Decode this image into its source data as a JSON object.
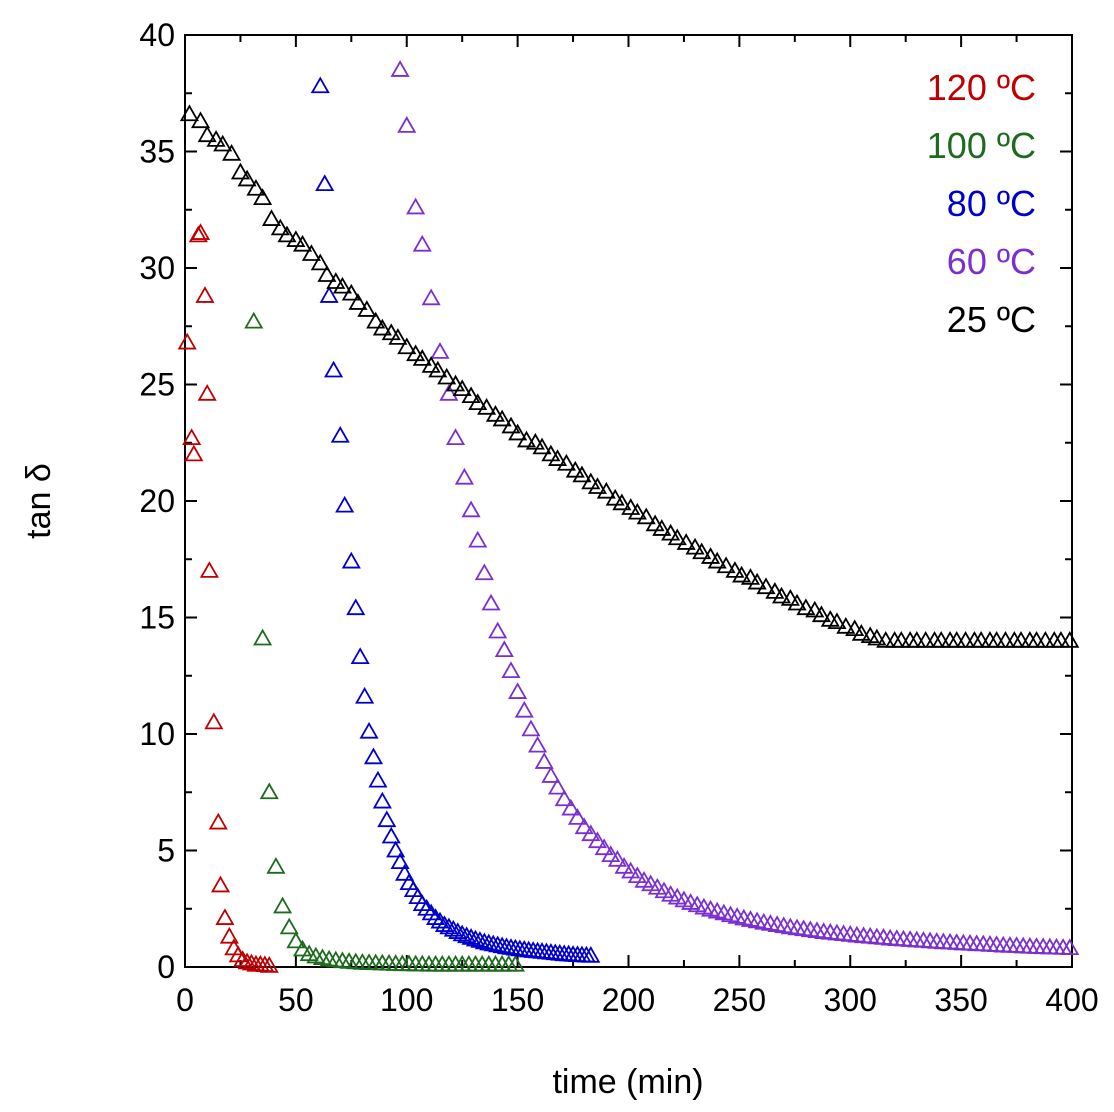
{
  "chart_data": {
    "type": "scatter",
    "xlabel": "time (min)",
    "ylabel": "tan δ",
    "xlim": [
      0,
      400
    ],
    "ylim": [
      0,
      40
    ],
    "xticks": [
      0,
      50,
      100,
      150,
      200,
      250,
      300,
      350,
      400
    ],
    "yticks": [
      0,
      5,
      10,
      15,
      20,
      25,
      30,
      35,
      40
    ],
    "marker": "open-triangle",
    "grid": false,
    "legend_position": "top-right",
    "series": [
      {
        "name": "120 ºC",
        "color": "#c00000",
        "x": [
          1,
          3,
          4,
          6,
          7,
          9,
          10,
          11,
          13,
          15,
          16,
          18,
          20,
          22,
          24,
          26,
          28,
          30,
          32,
          34,
          36,
          38
        ],
        "y": [
          26.8,
          22.7,
          22.0,
          31.4,
          31.5,
          28.8,
          24.6,
          17.0,
          10.5,
          6.2,
          3.5,
          2.1,
          1.3,
          0.8,
          0.5,
          0.3,
          0.2,
          0.15,
          0.1,
          0.1,
          0.08,
          0.05
        ]
      },
      {
        "name": "100 ºC",
        "color": "#1e6b1e",
        "x": [
          31,
          35,
          38,
          41,
          44,
          47,
          50,
          53,
          56,
          59,
          62,
          65,
          68,
          71,
          74,
          77,
          80,
          83,
          86,
          89,
          92,
          95,
          98,
          101,
          104,
          107,
          110,
          113,
          116,
          119,
          122,
          125,
          128,
          131,
          134,
          137,
          140,
          143,
          146,
          149
        ],
        "y": [
          27.7,
          14.1,
          7.5,
          4.3,
          2.6,
          1.7,
          1.1,
          0.75,
          0.55,
          0.45,
          0.38,
          0.32,
          0.28,
          0.25,
          0.22,
          0.2,
          0.18,
          0.17,
          0.16,
          0.15,
          0.14,
          0.13,
          0.12,
          0.12,
          0.11,
          0.11,
          0.1,
          0.1,
          0.1,
          0.1,
          0.1,
          0.1,
          0.1,
          0.1,
          0.1,
          0.1,
          0.1,
          0.1,
          0.1,
          0.1
        ]
      },
      {
        "name": "80 ºC",
        "color": "#0000cc",
        "x": [
          61,
          63,
          65,
          67,
          70,
          72,
          75,
          77,
          79,
          81,
          83,
          85,
          87,
          89,
          91,
          93,
          95,
          97,
          99,
          101,
          103,
          105,
          107,
          109,
          111,
          113,
          115,
          117,
          119,
          121,
          123,
          125,
          127,
          129,
          131,
          133,
          135,
          137,
          139,
          141,
          143,
          145,
          147,
          149,
          151,
          153,
          155,
          157,
          159,
          161,
          163,
          165,
          167,
          169,
          171,
          173,
          175,
          177,
          179,
          181,
          183
        ],
        "y": [
          37.8,
          33.6,
          28.8,
          25.6,
          22.8,
          19.8,
          17.4,
          15.4,
          13.3,
          11.6,
          10.1,
          9.0,
          8.0,
          7.1,
          6.3,
          5.6,
          5.0,
          4.5,
          4.0,
          3.6,
          3.3,
          3.0,
          2.7,
          2.5,
          2.3,
          2.1,
          1.95,
          1.8,
          1.7,
          1.6,
          1.5,
          1.4,
          1.32,
          1.25,
          1.18,
          1.12,
          1.06,
          1.01,
          0.97,
          0.93,
          0.89,
          0.85,
          0.82,
          0.79,
          0.76,
          0.74,
          0.71,
          0.69,
          0.67,
          0.65,
          0.63,
          0.61,
          0.59,
          0.57,
          0.55,
          0.54,
          0.52,
          0.51,
          0.5,
          0.49,
          0.48
        ]
      },
      {
        "name": "60 ºC",
        "color": "#7b2fd0",
        "x": [
          97,
          100,
          104,
          107,
          111,
          115,
          119,
          122,
          126,
          129,
          132,
          135,
          138,
          141,
          144,
          147,
          150,
          153,
          156,
          159,
          162,
          165,
          168,
          171,
          174,
          177,
          180,
          183,
          186,
          189,
          192,
          195,
          198,
          201,
          204,
          207,
          210,
          213,
          216,
          219,
          222,
          225,
          228,
          231,
          234,
          237,
          240,
          243,
          246,
          249,
          252,
          255,
          258,
          261,
          264,
          267,
          270,
          273,
          276,
          279,
          282,
          285,
          288,
          291,
          294,
          297,
          300,
          303,
          306,
          309,
          312,
          315,
          318,
          321,
          324,
          327,
          330,
          333,
          336,
          339,
          342,
          345,
          348,
          351,
          354,
          357,
          360,
          363,
          366,
          369,
          372,
          375,
          378,
          381,
          384,
          387,
          390,
          393,
          396,
          399
        ],
        "y": [
          38.5,
          36.1,
          32.6,
          31.0,
          28.7,
          26.4,
          24.6,
          22.7,
          21.0,
          19.6,
          18.3,
          16.9,
          15.6,
          14.4,
          13.6,
          12.7,
          11.8,
          11.0,
          10.2,
          9.5,
          8.8,
          8.2,
          7.7,
          7.2,
          6.8,
          6.4,
          6.0,
          5.7,
          5.4,
          5.1,
          4.8,
          4.6,
          4.3,
          4.1,
          3.9,
          3.7,
          3.55,
          3.4,
          3.25,
          3.1,
          2.98,
          2.86,
          2.75,
          2.65,
          2.55,
          2.46,
          2.38,
          2.3,
          2.22,
          2.15,
          2.08,
          2.02,
          1.96,
          1.9,
          1.85,
          1.8,
          1.75,
          1.7,
          1.66,
          1.62,
          1.58,
          1.54,
          1.5,
          1.47,
          1.44,
          1.41,
          1.38,
          1.35,
          1.32,
          1.3,
          1.27,
          1.25,
          1.22,
          1.2,
          1.18,
          1.16,
          1.14,
          1.12,
          1.1,
          1.08,
          1.06,
          1.05,
          1.03,
          1.01,
          1.0,
          0.98,
          0.97,
          0.95,
          0.94,
          0.92,
          0.91,
          0.9,
          0.88,
          0.87,
          0.86,
          0.85,
          0.84,
          0.83,
          0.82,
          0.81
        ]
      },
      {
        "name": "25 ºC",
        "color": "#000000",
        "x": [
          2,
          7,
          10,
          14,
          17,
          21,
          25,
          28,
          32,
          35,
          39,
          43,
          46,
          50,
          53,
          57,
          61,
          64,
          68,
          71,
          75,
          78,
          82,
          86,
          89,
          93,
          96,
          100,
          104,
          107,
          111,
          114,
          118,
          122,
          125,
          129,
          132,
          136,
          140,
          143,
          147,
          150,
          154,
          158,
          161,
          165,
          168,
          172,
          176,
          179,
          183,
          186,
          190,
          194,
          197,
          201,
          204,
          208,
          212,
          215,
          219,
          222,
          226,
          230,
          233,
          237,
          240,
          244,
          248,
          251,
          255,
          258,
          262,
          266,
          269,
          273,
          276,
          280,
          284,
          287,
          291,
          294,
          298,
          302,
          305,
          309,
          312,
          316,
          320,
          323,
          327,
          330,
          334,
          338,
          341,
          345,
          348,
          352,
          356,
          359,
          363,
          366,
          370,
          374,
          377,
          381,
          384,
          388,
          392,
          395,
          399
        ],
        "y": [
          36.6,
          36.3,
          35.7,
          35.5,
          35.3,
          34.9,
          34.1,
          33.8,
          33.4,
          33.0,
          32.1,
          31.7,
          31.4,
          31.2,
          31.0,
          30.6,
          30.2,
          29.7,
          29.4,
          29.2,
          28.9,
          28.5,
          28.2,
          27.7,
          27.4,
          27.2,
          27.0,
          26.6,
          26.3,
          26.1,
          25.8,
          25.6,
          25.3,
          25.0,
          24.8,
          24.5,
          24.2,
          24.0,
          23.7,
          23.5,
          23.2,
          22.9,
          22.6,
          22.5,
          22.3,
          22.0,
          21.8,
          21.6,
          21.3,
          21.1,
          20.8,
          20.6,
          20.4,
          20.1,
          19.9,
          19.7,
          19.5,
          19.3,
          19.0,
          18.8,
          18.6,
          18.4,
          18.2,
          18.0,
          17.8,
          17.6,
          17.4,
          17.2,
          17.0,
          16.8,
          16.7,
          16.5,
          16.3,
          16.1,
          15.9,
          15.8,
          15.6,
          15.4,
          15.3,
          15.1,
          14.9,
          14.8,
          14.6,
          14.5,
          14.3,
          14.2,
          14.1,
          14.0,
          14.0,
          14.0,
          14.0,
          14.0,
          14.0,
          14.0,
          14.0,
          14.0,
          14.0,
          14.0,
          14.0,
          14.0,
          14.0,
          14.0,
          14.0,
          14.0,
          14.0,
          14.0,
          14.0,
          14.0,
          14.0,
          14.0,
          14.0
        ]
      }
    ]
  }
}
